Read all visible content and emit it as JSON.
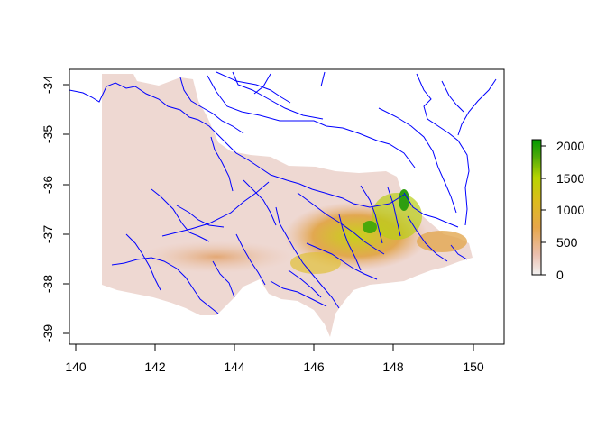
{
  "map": {
    "x_axis": {
      "ticks": [
        "140",
        "142",
        "144",
        "146",
        "148",
        "150"
      ],
      "range": [
        139.9,
        150.75
      ]
    },
    "y_axis": {
      "ticks": [
        "-34",
        "-35",
        "-36",
        "-37",
        "-38",
        "-39"
      ],
      "range": [
        -39.2,
        -33.75
      ]
    },
    "raster": {
      "description_free": true,
      "palette_low": "#f1eded",
      "palette_mid": "#e8a45a",
      "palette_high_mid": "#c7d21a",
      "palette_high": "#1a9a1a"
    },
    "rivers": {
      "color": "#0000ff"
    },
    "legend": {
      "labels": [
        "2000",
        "1500",
        "1000",
        "500",
        "0"
      ],
      "values": [
        2000,
        1500,
        1000,
        500,
        0
      ],
      "range": [
        0,
        2100
      ],
      "colors": [
        "#f2f2f2",
        "#ebb8a8",
        "#e6a23c",
        "#d9c21a",
        "#b8d400",
        "#4aa80a",
        "#009900"
      ]
    }
  }
}
